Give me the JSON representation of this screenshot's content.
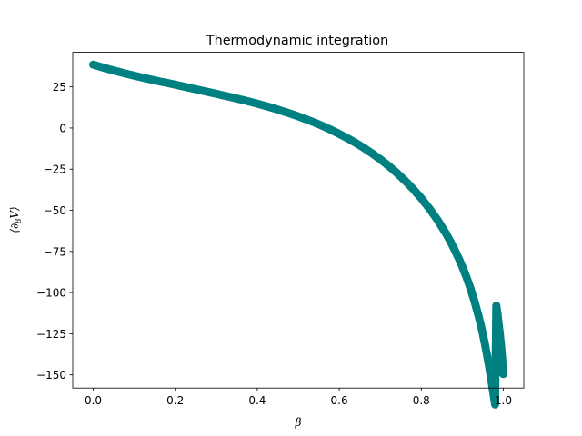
{
  "chart_data": {
    "type": "scatter",
    "title": "Thermodynamic integration",
    "xlabel": "β",
    "ylabel_parts": {
      "open": "⟨",
      "partial": "∂",
      "sub": "β",
      "var": "V",
      "close": "⟩"
    },
    "xlim": [
      -0.05,
      1.05
    ],
    "ylim": [
      -158,
      46
    ],
    "x_ticks": [
      "0.0",
      "0.2",
      "0.4",
      "0.6",
      "0.8",
      "1.0"
    ],
    "x_tick_values": [
      0,
      0.2,
      0.4,
      0.6,
      0.8,
      1.0
    ],
    "y_ticks": [
      "25",
      "0",
      "−25",
      "−50",
      "−75",
      "−100",
      "−125",
      "−150"
    ],
    "y_tick_values": [
      25,
      0,
      -25,
      -50,
      -75,
      -100,
      -125,
      -150
    ],
    "marker_color": "#008080",
    "grid": false,
    "legend": "none",
    "x": [
      0.0,
      0.02,
      0.04,
      0.06,
      0.08,
      0.1,
      0.12,
      0.14,
      0.16,
      0.18,
      0.2,
      0.22,
      0.24,
      0.26,
      0.28,
      0.3,
      0.32,
      0.34,
      0.36,
      0.38,
      0.4,
      0.42,
      0.44,
      0.46,
      0.48,
      0.5,
      0.52,
      0.54,
      0.56,
      0.58,
      0.6,
      0.62,
      0.64,
      0.66,
      0.68,
      0.7,
      0.72,
      0.74,
      0.76,
      0.78,
      0.8,
      0.82,
      0.84,
      0.86,
      0.87,
      0.88,
      0.89,
      0.9,
      0.91,
      0.92,
      0.93,
      0.94,
      0.945,
      0.95,
      0.955,
      0.96,
      0.965,
      0.97,
      0.975,
      0.98,
      0.983,
      0.986,
      0.989,
      0.992,
      0.995,
      0.997,
      0.999,
      1.0
    ],
    "y": [
      38.5,
      37.0,
      35.6,
      34.3,
      33.0,
      31.8,
      30.6,
      29.5,
      28.4,
      27.4,
      26.3,
      25.2,
      24.1,
      23.0,
      21.9,
      20.8,
      19.6,
      18.5,
      17.3,
      16.1,
      14.8,
      13.4,
      12.0,
      10.4,
      8.8,
      7.1,
      5.2,
      3.3,
      1.2,
      -1.1,
      -3.6,
      -6.2,
      -9.0,
      -12.1,
      -15.4,
      -19.0,
      -22.9,
      -27.2,
      -31.9,
      -37.0,
      -42.7,
      -49.0,
      -56.0,
      -64.0,
      -68.5,
      -73.3,
      -78.5,
      -84.2,
      -90.5,
      -97.5,
      -105.5,
      -114.5,
      -119.5,
      -125.0,
      -131.0,
      -137.5,
      -144.5,
      -152.0,
      -160.0,
      -168.0,
      -108.0,
      -113.0,
      -119.5,
      -126.0,
      -133.5,
      -139.5,
      -145.5,
      -149.5
    ]
  }
}
